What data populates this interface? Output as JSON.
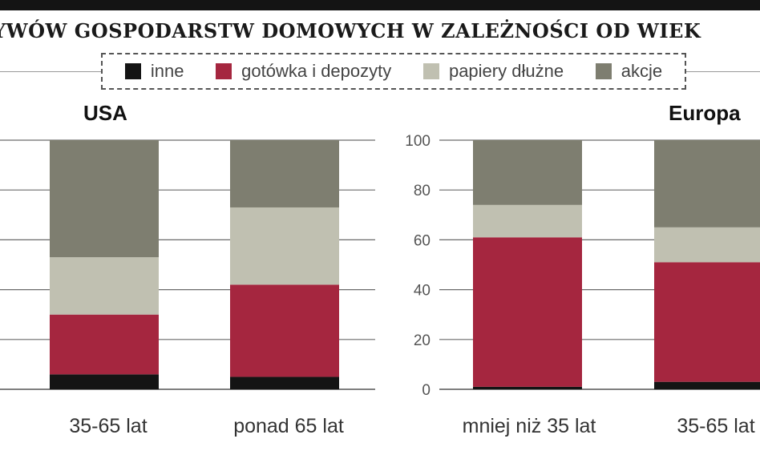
{
  "title": "YWÓW GOSPODARSTW DOMOWYCH W ZALEŻNOŚCI OD WIEK",
  "legend": [
    {
      "label": "inne",
      "color": "#141414"
    },
    {
      "label": "gotówka i depozyty",
      "color": "#a5263f"
    },
    {
      "label": "papiery dłużne",
      "color": "#c0c0b1"
    },
    {
      "label": "akcje",
      "color": "#7e7e70"
    }
  ],
  "chart_data": [
    {
      "type": "bar",
      "stacked": true,
      "title": "USA",
      "categories": [
        "35-65 lat",
        "ponad 65 lat"
      ],
      "series": [
        {
          "name": "inne",
          "values": [
            6,
            5
          ],
          "color": "#141414"
        },
        {
          "name": "gotówka i depozyty",
          "values": [
            24,
            37
          ],
          "color": "#a5263f"
        },
        {
          "name": "papiery dłużne",
          "values": [
            23,
            31
          ],
          "color": "#c0c0b1"
        },
        {
          "name": "akcje",
          "values": [
            47,
            27
          ],
          "color": "#7e7e70"
        }
      ],
      "ylim": [
        0,
        100
      ],
      "grid": true
    },
    {
      "type": "bar",
      "stacked": true,
      "title": "Europa",
      "categories": [
        "mniej niż 35 lat",
        "35-65 lat"
      ],
      "series": [
        {
          "name": "inne",
          "values": [
            1,
            3
          ],
          "color": "#141414"
        },
        {
          "name": "gotówka i depozyty",
          "values": [
            60,
            48
          ],
          "color": "#a5263f"
        },
        {
          "name": "papiery dłużne",
          "values": [
            13,
            14
          ],
          "color": "#c0c0b1"
        },
        {
          "name": "akcje",
          "values": [
            26,
            35
          ],
          "color": "#7e7e70"
        }
      ],
      "ylim": [
        0,
        100
      ],
      "yticks": [
        "0",
        "20",
        "40",
        "60",
        "80",
        "100"
      ],
      "grid": true
    }
  ]
}
